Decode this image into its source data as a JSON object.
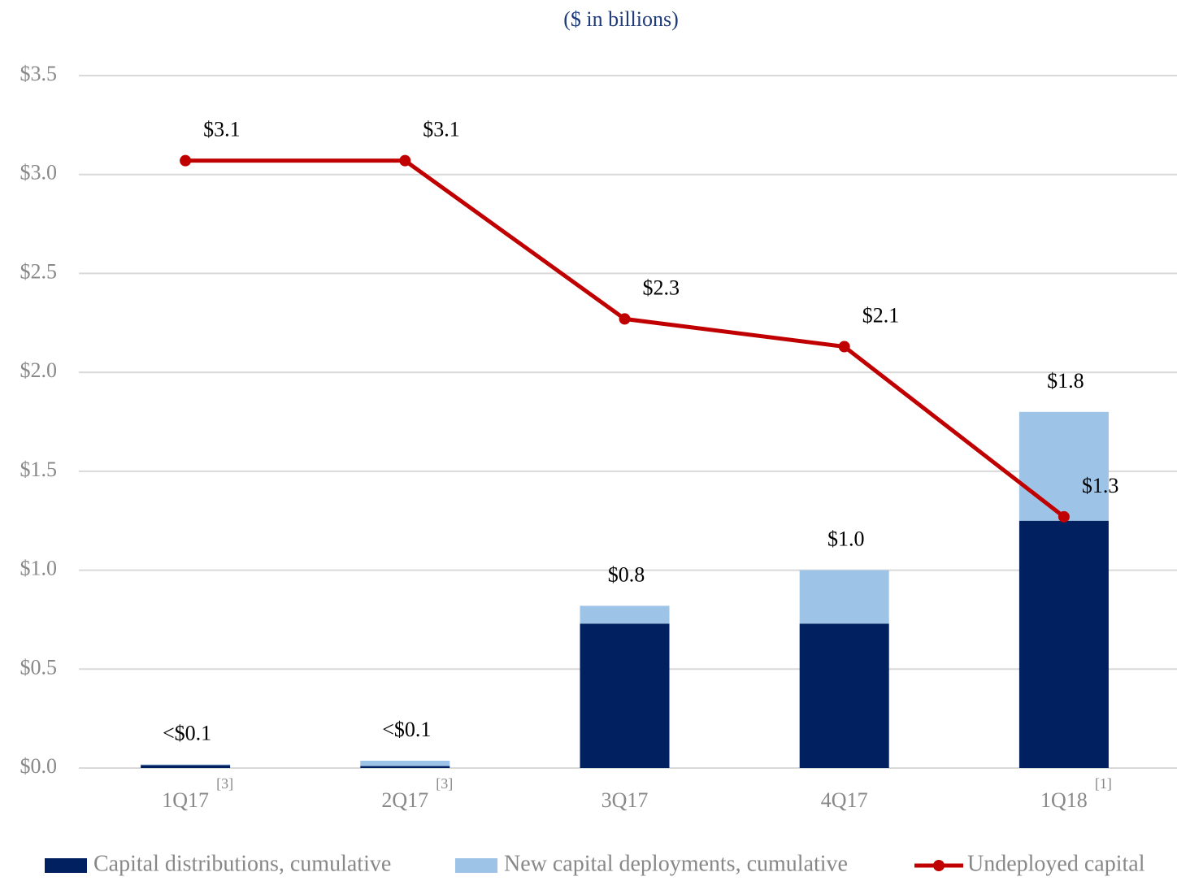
{
  "chart_data": {
    "type": "bar_line",
    "subtitle": "($ in billions)",
    "categories": [
      "1Q17",
      "2Q17",
      "3Q17",
      "4Q17",
      "1Q18"
    ],
    "category_notes": [
      "[3]",
      "[3]",
      null,
      null,
      "[1]"
    ],
    "series": [
      {
        "name": "Capital distributions, cumulative",
        "type": "bar",
        "color": "#002060",
        "values": [
          0.015,
          0.01,
          0.73,
          0.73,
          1.25
        ]
      },
      {
        "name": "New capital deployments, cumulative",
        "type": "bar",
        "color": "#9dc3e6",
        "values": [
          0.003,
          0.027,
          0.09,
          0.27,
          0.55
        ]
      },
      {
        "name": "Undeployed capital",
        "type": "line",
        "color": "#c00000",
        "values": [
          3.07,
          3.07,
          2.27,
          2.13,
          1.27
        ],
        "value_labels": [
          "$3.1",
          "$3.1",
          "$2.3",
          "$2.1",
          "$1.3"
        ]
      }
    ],
    "stack_labels": [
      "<$0.1",
      "<$0.1",
      "$0.8",
      "$1.0",
      "$1.8"
    ],
    "ylim": [
      0,
      3.5
    ],
    "yticks": [
      {
        "value": 0,
        "label": "$0.0"
      },
      {
        "value": 0.5,
        "label": "$0.5"
      },
      {
        "value": 1,
        "label": "$1.0"
      },
      {
        "value": 1.5,
        "label": "$1.5"
      },
      {
        "value": 2,
        "label": "$2.0"
      },
      {
        "value": 2.5,
        "label": "$2.5"
      },
      {
        "value": 3,
        "label": "$3.0"
      },
      {
        "value": 3.5,
        "label": "$3.5"
      }
    ],
    "grid": true,
    "legend": "bottom"
  }
}
